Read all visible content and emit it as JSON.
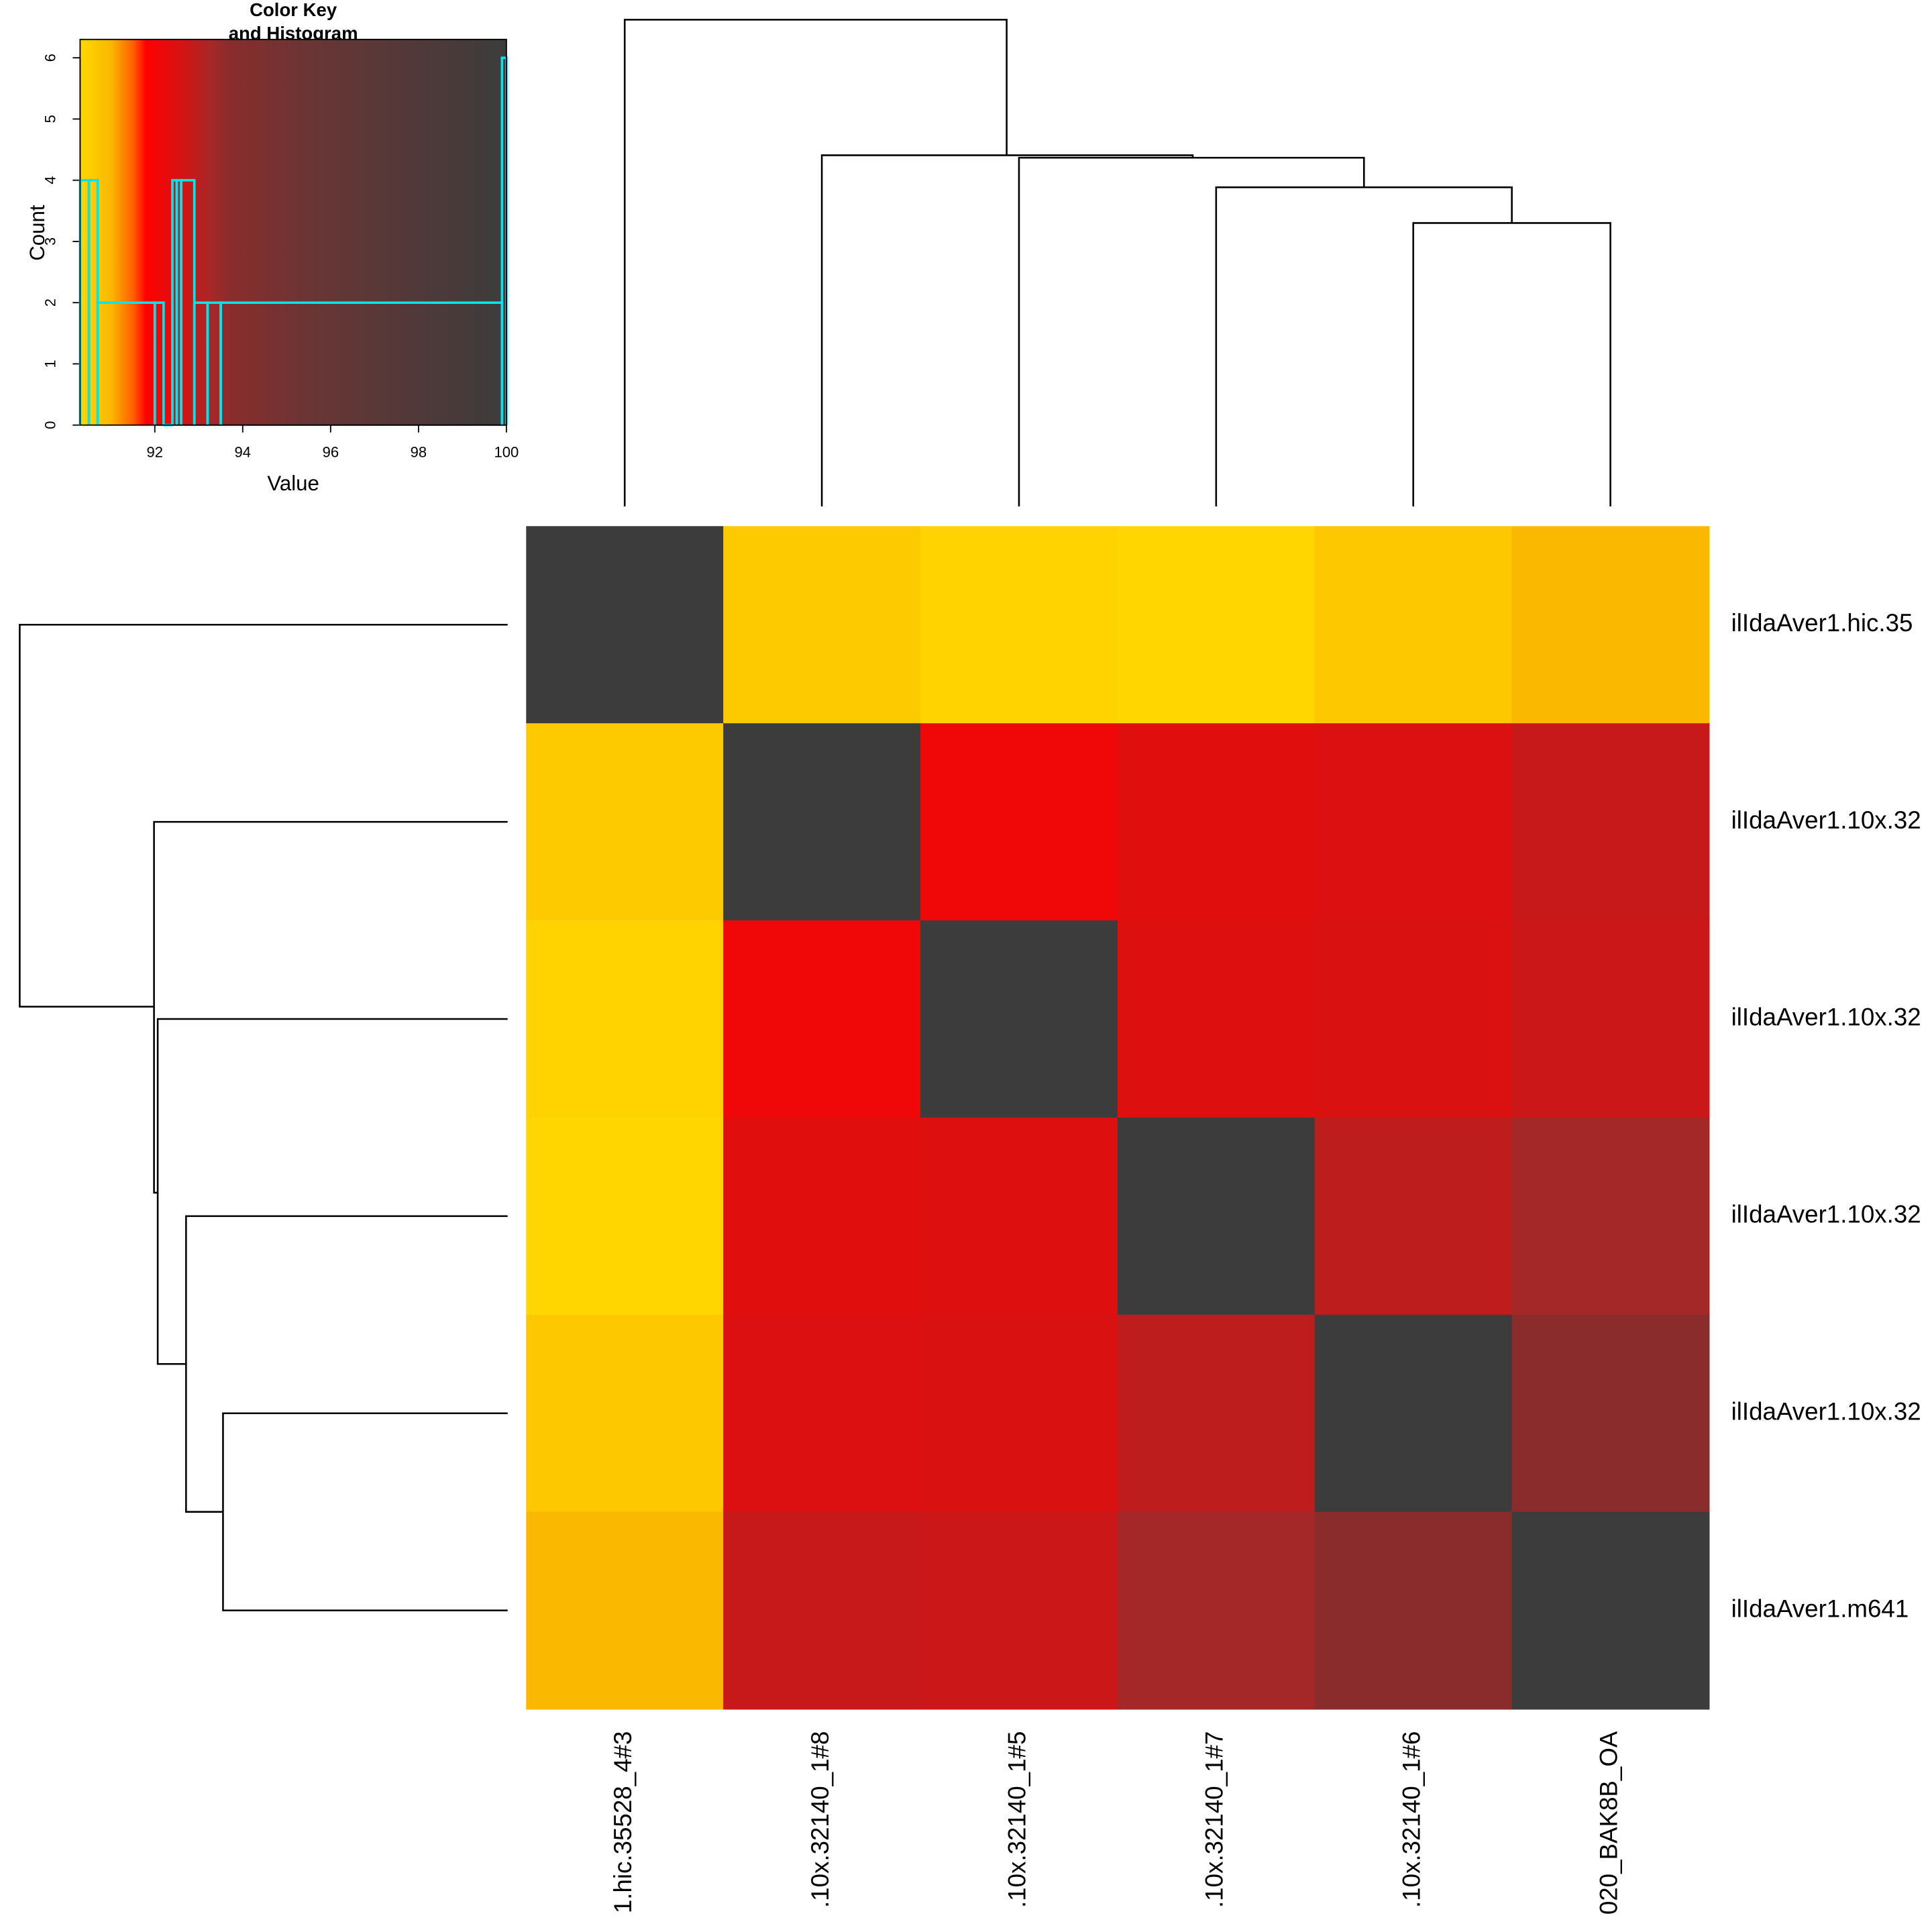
{
  "chart_data": {
    "type": "heatmap",
    "key_title": [
      "Color Key",
      "and Histogram"
    ],
    "key_xlabel": "Value",
    "key_ylabel": "Count",
    "xlim": [
      90.3,
      100
    ],
    "xticks": [
      92,
      94,
      96,
      98,
      100
    ],
    "ylim": [
      0,
      6.3
    ],
    "yticks": [
      0,
      1,
      2,
      3,
      4,
      5,
      6
    ],
    "hist_color": "#00e5ee",
    "bins": [
      90.3,
      90.5,
      90.7,
      92.0,
      92.2,
      92.4,
      92.5,
      92.6,
      92.9,
      93.2,
      93.5,
      99.9,
      100
    ],
    "counts": [
      4,
      4,
      2,
      2,
      0,
      4,
      4,
      4,
      2,
      2,
      2,
      6
    ],
    "color_stops": [
      {
        "value": 90.3,
        "color": "#ffd800"
      },
      {
        "value": 91.0,
        "color": "#fbb800"
      },
      {
        "value": 91.5,
        "color": "#ff6000"
      },
      {
        "value": 91.8,
        "color": "#ff0000"
      },
      {
        "value": 92.1,
        "color": "#f00808"
      },
      {
        "value": 92.5,
        "color": "#dc1010"
      },
      {
        "value": 92.9,
        "color": "#c01c1c"
      },
      {
        "value": 93.3,
        "color": "#a52828"
      },
      {
        "value": 93.7,
        "color": "#8a2c2c"
      },
      {
        "value": 95.5,
        "color": "#6a3535"
      },
      {
        "value": 100,
        "color": "#3c3c3c"
      }
    ],
    "rows": [
      "ilIdaAver1.hic.35",
      "ilIdaAver1.10x.32",
      "ilIdaAver1.10x.32",
      "ilIdaAver1.10x.32",
      "ilIdaAver1.10x.32",
      "ilIdaAver1.m641"
    ],
    "columns": [
      "1.hic.35528_4#3",
      ".10x.32140_1#8",
      ".10x.32140_1#5",
      ".10x.32140_1#7",
      ".10x.32140_1#6",
      "020_BAK8B_OA"
    ],
    "values": [
      [
        100,
        90.6,
        90.4,
        90.35,
        90.65,
        91.0
      ],
      [
        90.6,
        100,
        92.1,
        92.4,
        92.5,
        92.8
      ],
      [
        90.4,
        92.1,
        100,
        92.45,
        92.55,
        92.75
      ],
      [
        90.35,
        92.4,
        92.45,
        100,
        92.95,
        93.3
      ],
      [
        90.65,
        92.5,
        92.55,
        92.95,
        100,
        93.7
      ],
      [
        91.0,
        92.8,
        92.75,
        93.3,
        93.7,
        100
      ]
    ]
  }
}
